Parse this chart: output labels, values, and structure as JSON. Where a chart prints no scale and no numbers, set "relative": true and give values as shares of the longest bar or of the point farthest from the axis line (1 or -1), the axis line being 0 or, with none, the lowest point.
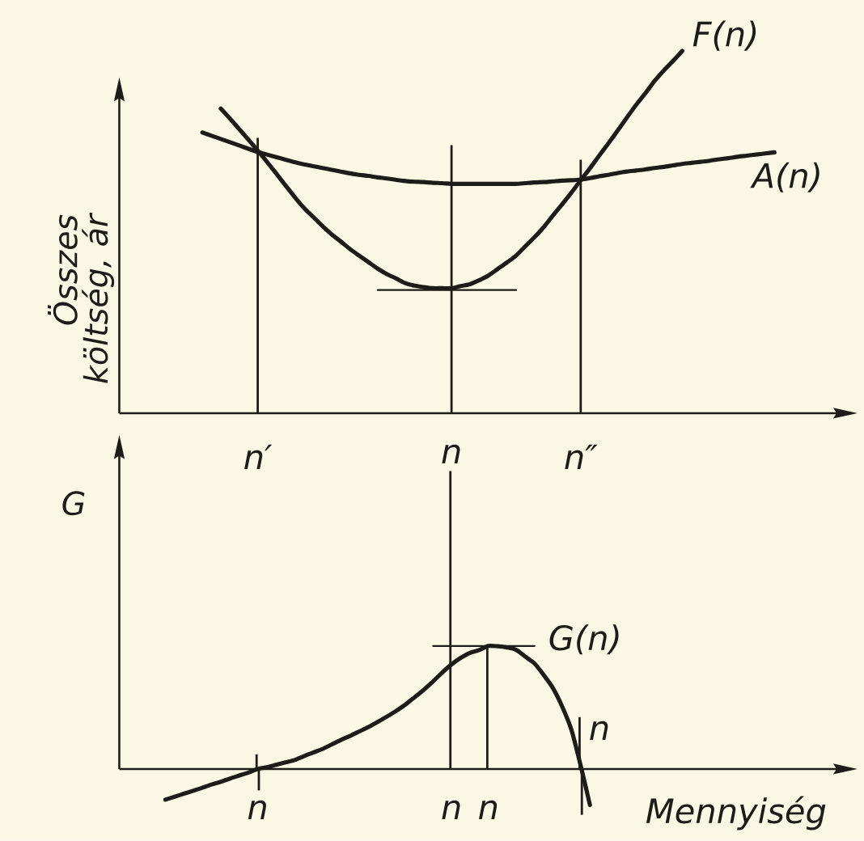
{
  "chart_data": [
    {
      "type": "line",
      "relative": true,
      "ylabel": "Összes költség, ár",
      "categories": [
        null,
        null,
        null,
        null,
        null,
        null,
        null,
        null,
        null,
        null,
        null,
        null,
        null,
        null,
        null,
        "n′",
        null,
        null,
        null,
        null,
        null,
        null,
        null,
        null,
        null,
        null,
        null,
        null,
        null,
        null,
        null,
        null,
        null,
        null,
        null,
        null,
        "n",
        null,
        null,
        null,
        null,
        null,
        null,
        null,
        null,
        null,
        null,
        null,
        null,
        null,
        "n″",
        null,
        null,
        null,
        null,
        null,
        null,
        null,
        null,
        null,
        null,
        null,
        null,
        null,
        null,
        null,
        null,
        null,
        null,
        null,
        null,
        null,
        null,
        null,
        null,
        null,
        null,
        null,
        null,
        null,
        null
      ],
      "series": [
        {
          "name": "F(n)",
          "color": "#1e1c19",
          "values": [
            null,
            null,
            null,
            null,
            null,
            null,
            null,
            null,
            null,
            null,
            null,
            0.841,
            0.813,
            0.784,
            0.755,
            0.725,
            0.694,
            0.662,
            0.629,
            0.597,
            0.567,
            0.542,
            0.517,
            0.494,
            0.474,
            0.453,
            0.435,
            0.417,
            0.399,
            0.384,
            0.372,
            0.359,
            0.352,
            0.348,
            0.345,
            0.345,
            0.345,
            0.351,
            0.356,
            0.367,
            0.38,
            0.398,
            0.416,
            0.435,
            0.461,
            0.486,
            0.514,
            0.546,
            0.577,
            0.609,
            0.643,
            0.676,
            0.711,
            0.745,
            0.78,
            0.816,
            0.851,
            0.883,
            0.917,
            0.946,
            0.972,
            1.0,
            null,
            null,
            null,
            null,
            null,
            null,
            null,
            null,
            null,
            null,
            null,
            null,
            null,
            null,
            null,
            null,
            null,
            null,
            null
          ]
        },
        {
          "name": "A(n)",
          "color": "#1e1c19",
          "values": [
            null,
            null,
            null,
            null,
            null,
            null,
            null,
            null,
            null,
            0.775,
            0.766,
            0.757,
            0.748,
            0.739,
            0.73,
            0.721,
            0.714,
            0.707,
            0.7,
            0.693,
            0.687,
            0.682,
            0.677,
            0.672,
            0.667,
            0.662,
            0.658,
            0.655,
            0.651,
            0.648,
            0.644,
            0.641,
            0.639,
            0.638,
            0.636,
            0.635,
            0.633,
            0.633,
            0.633,
            0.633,
            0.633,
            0.633,
            0.633,
            0.633,
            0.635,
            0.637,
            0.638,
            0.64,
            0.642,
            0.643,
            0.645,
            0.649,
            0.654,
            0.658,
            0.663,
            0.667,
            0.67,
            0.673,
            0.677,
            0.68,
            0.684,
            0.688,
            0.691,
            0.694,
            0.697,
            0.701,
            0.704,
            0.708,
            0.711,
            0.714,
            0.717,
            0.72,
            null,
            null,
            null,
            null,
            null,
            null,
            null,
            null,
            null
          ]
        },
        {
          "type": "line",
          "color": "#1e1c19",
          "values": [
            null,
            null,
            null,
            null,
            null,
            null,
            null,
            null,
            null,
            null,
            null,
            null,
            null,
            null,
            null,
            null,
            null,
            null,
            null,
            null,
            null,
            null,
            null,
            null,
            null,
            null,
            null,
            null,
            0.34,
            0.34,
            0.34,
            0.34,
            0.34,
            0.34,
            0.34,
            0.34,
            0.34,
            0.34,
            0.34,
            0.34,
            0.34,
            0.34,
            0.34,
            0.34,
            null,
            null,
            null,
            null,
            null,
            null,
            null,
            null,
            null,
            null,
            null,
            null,
            null,
            null,
            null,
            null,
            null,
            null,
            null,
            null,
            null,
            null,
            null,
            null,
            null,
            null,
            null,
            null,
            null,
            null,
            null,
            null,
            null,
            null,
            null,
            null,
            null
          ]
        },
        {
          "type": "bar",
          "color": "#1e1c19",
          "values": [
            null,
            null,
            null,
            null,
            null,
            null,
            null,
            null,
            null,
            null,
            null,
            null,
            null,
            null,
            null,
            0.76,
            null,
            null,
            null,
            null,
            null,
            null,
            null,
            null,
            null,
            null,
            null,
            null,
            null,
            null,
            null,
            null,
            null,
            null,
            null,
            null,
            0.74,
            null,
            null,
            null,
            null,
            null,
            null,
            null,
            null,
            null,
            null,
            null,
            null,
            null,
            0.7,
            null,
            null,
            null,
            null,
            null,
            null,
            null,
            null,
            null,
            null,
            null,
            null,
            null,
            null,
            null,
            null,
            null,
            null,
            null,
            null,
            null,
            null,
            null,
            null,
            null,
            null,
            null,
            null,
            null,
            null
          ]
        }
      ]
    },
    {
      "type": "line",
      "relative": true,
      "ylabel": "G",
      "xlabel": "Mennyiség",
      "categories": [
        null,
        null,
        null,
        null,
        null,
        null,
        null,
        null,
        null,
        null,
        null,
        null,
        null,
        null,
        null,
        "n",
        null,
        null,
        null,
        null,
        null,
        null,
        null,
        null,
        null,
        null,
        null,
        null,
        null,
        null,
        null,
        null,
        null,
        null,
        null,
        null,
        "n",
        null,
        null,
        null,
        "n",
        null,
        null,
        null,
        null,
        null,
        null,
        null,
        null,
        null,
        null,
        null,
        null,
        null,
        null,
        null,
        null,
        null,
        null,
        null,
        null,
        null,
        null,
        null,
        null,
        null,
        null,
        null,
        null,
        null,
        null,
        null,
        null,
        null,
        null,
        null,
        null,
        null,
        null,
        null,
        null
      ],
      "series": [
        {
          "name": "G(n)",
          "color": "#1e1c19",
          "values": [
            null,
            null,
            null,
            null,
            null,
            -0.103,
            -0.093,
            -0.083,
            -0.073,
            -0.063,
            -0.052,
            -0.043,
            -0.032,
            -0.022,
            -0.012,
            0,
            0.006,
            0.014,
            0.022,
            0.03,
            0.043,
            0.055,
            0.067,
            0.082,
            0.097,
            0.111,
            0.126,
            0.141,
            0.158,
            0.176,
            0.195,
            0.216,
            0.241,
            0.266,
            0.294,
            0.324,
            0.351,
            0.373,
            0.39,
            0.399,
            0.413,
            0.412,
            0.408,
            0.4,
            0.377,
            0.354,
            0.315,
            0.271,
            0.209,
            0.131,
            0.011,
            -0.121,
            null,
            null,
            null,
            null,
            null,
            null,
            null,
            null,
            null,
            null,
            null,
            null,
            null,
            null,
            null,
            null,
            null,
            null,
            null,
            null,
            null,
            null,
            null,
            null,
            null,
            null,
            null,
            null,
            null
          ]
        },
        {
          "type": "line",
          "color": "#1e1c19",
          "values": [
            null,
            null,
            null,
            null,
            null,
            null,
            null,
            null,
            null,
            null,
            null,
            null,
            null,
            null,
            null,
            null,
            null,
            null,
            null,
            null,
            null,
            null,
            null,
            null,
            null,
            null,
            null,
            null,
            null,
            null,
            null,
            null,
            null,
            null,
            0.413,
            0.413,
            0.413,
            0.413,
            0.413,
            0.413,
            0.413,
            0.413,
            0.413,
            0.413,
            0.413,
            0.413,
            null,
            null,
            null,
            null,
            null,
            null,
            null,
            null,
            null,
            null,
            null,
            null,
            null,
            null,
            null,
            null,
            null,
            null,
            null,
            null,
            null,
            null,
            null,
            null,
            null,
            null,
            null,
            null,
            null,
            null,
            null,
            null,
            null,
            null,
            null
          ]
        },
        {
          "type": "bar",
          "color": "#1e1c19",
          "values": [
            null,
            null,
            null,
            null,
            null,
            null,
            null,
            null,
            null,
            null,
            null,
            null,
            null,
            null,
            null,
            0.049,
            null,
            null,
            null,
            null,
            null,
            null,
            null,
            null,
            null,
            null,
            null,
            null,
            null,
            null,
            null,
            null,
            null,
            null,
            null,
            null,
            1.0,
            null,
            null,
            null,
            0.413,
            null,
            null,
            null,
            null,
            null,
            null,
            null,
            null,
            null,
            0.174,
            null,
            null,
            null,
            null,
            null,
            null,
            null,
            null,
            null,
            null,
            null,
            null,
            null,
            null,
            null,
            null,
            null,
            null,
            null,
            null,
            null,
            null,
            null,
            null,
            null,
            null,
            null,
            null,
            null,
            null
          ]
        },
        {
          "type": "bar",
          "color": "#1e1c19",
          "values": [
            null,
            null,
            null,
            null,
            null,
            null,
            null,
            null,
            null,
            null,
            null,
            null,
            null,
            null,
            null,
            -0.072,
            null,
            null,
            null,
            null,
            null,
            null,
            null,
            null,
            null,
            null,
            null,
            null,
            null,
            null,
            null,
            null,
            null,
            null,
            null,
            null,
            null,
            null,
            null,
            null,
            null,
            null,
            null,
            null,
            null,
            null,
            null,
            null,
            null,
            null,
            -0.154,
            null,
            null,
            null,
            null,
            null,
            null,
            null,
            null,
            null,
            null,
            null,
            null,
            null,
            null,
            null,
            null,
            null,
            null,
            null,
            null,
            null,
            null,
            null,
            null,
            null,
            null,
            null,
            null,
            null,
            null
          ]
        }
      ],
      "annotations": [
        "n"
      ]
    }
  ]
}
